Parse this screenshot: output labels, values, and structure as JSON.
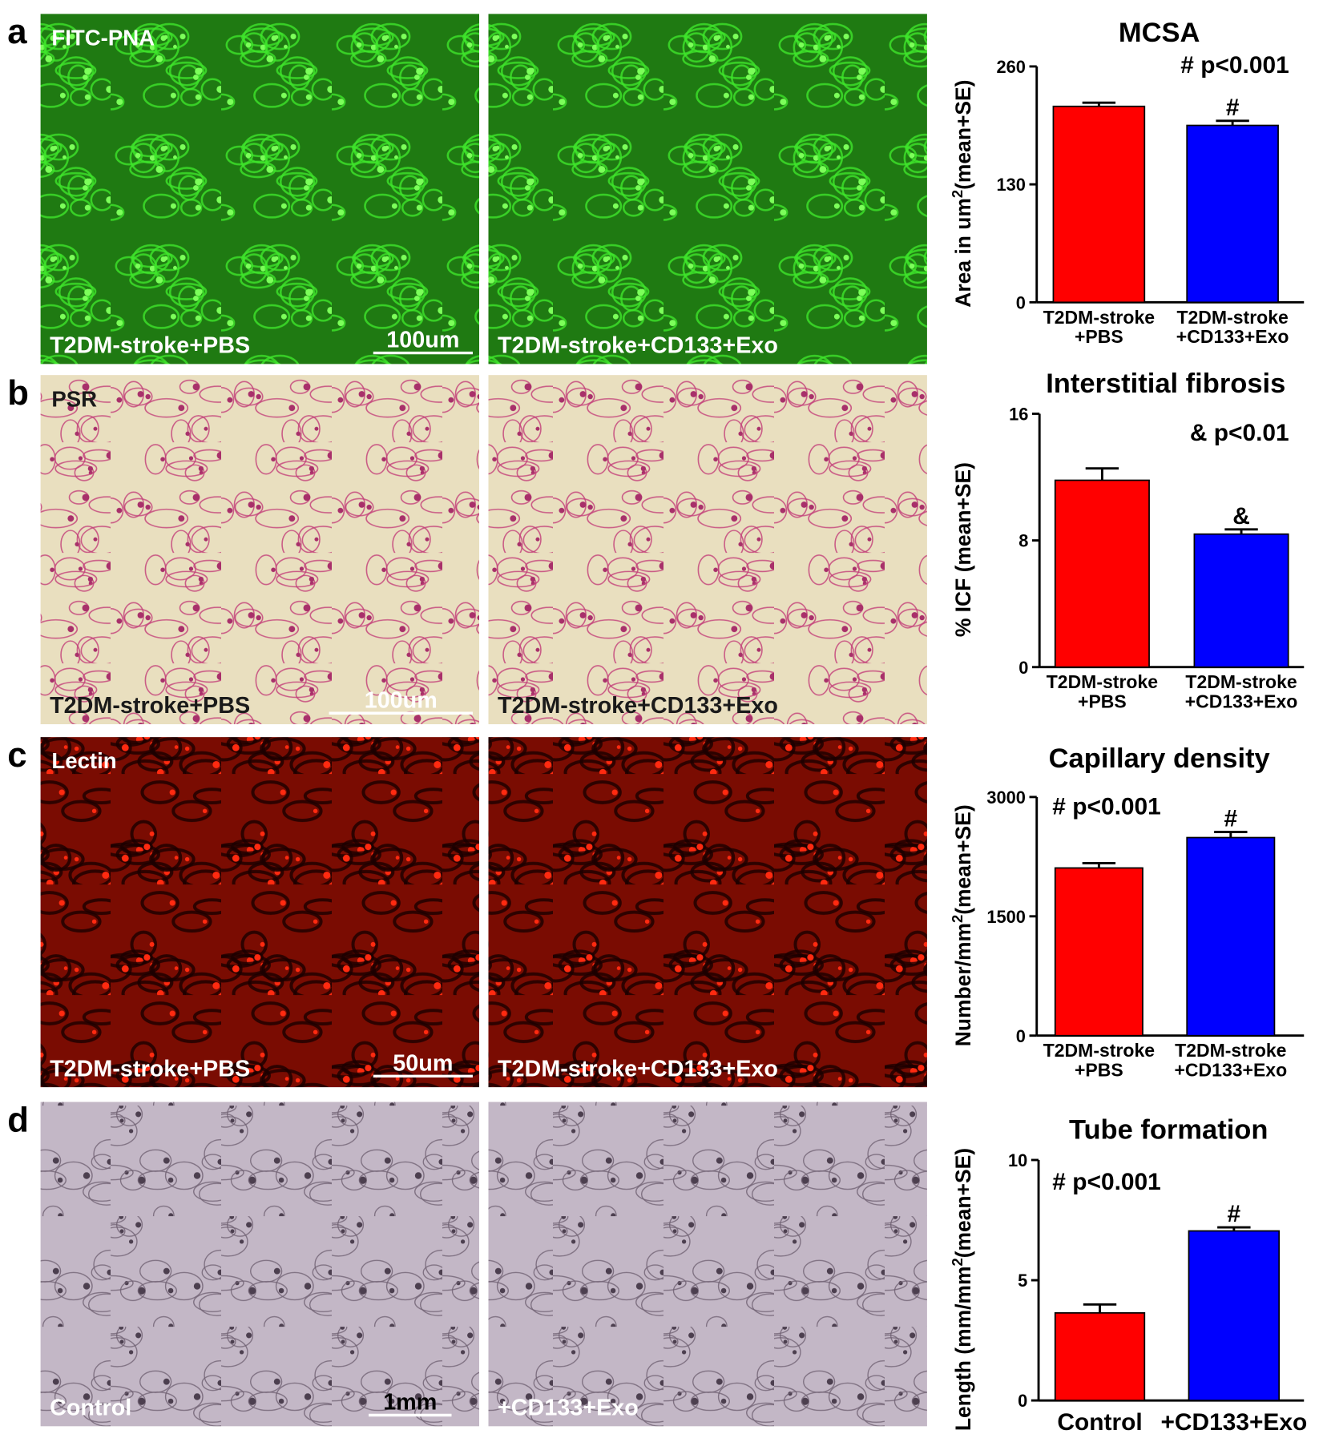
{
  "panels": [
    {
      "letter": "a",
      "stain": "FITC-PNA",
      "scale_bar": "100um",
      "images": [
        "T2DM-stroke+PBS",
        "T2DM-stroke+CD133+Exo"
      ]
    },
    {
      "letter": "b",
      "stain": "PSR",
      "scale_bar": "100um",
      "images": [
        "T2DM-stroke+PBS",
        "T2DM-stroke+CD133+Exo"
      ]
    },
    {
      "letter": "c",
      "stain": "Lectin",
      "scale_bar": "50um",
      "images": [
        "T2DM-stroke+PBS",
        "T2DM-stroke+CD133+Exo"
      ]
    },
    {
      "letter": "d",
      "scale_bar": "1mm",
      "images": [
        "Control",
        "+CD133+Exo"
      ]
    }
  ],
  "chart_data": [
    {
      "type": "bar",
      "title": "MCSA",
      "annotation": "# p<0.001",
      "ylabel": [
        "Area in um",
        "2",
        "(mean+SE)"
      ],
      "categories": [
        [
          "T2DM-stroke",
          "+PBS"
        ],
        [
          "T2DM-stroke",
          "+CD133+Exo"
        ]
      ],
      "values": [
        216,
        195
      ],
      "errors": [
        4,
        5
      ],
      "bar_labels": [
        null,
        "#"
      ],
      "colors": [
        "#ff0000",
        "#0000ff"
      ],
      "ylim": [
        0,
        260
      ],
      "yticks": [
        0,
        130,
        260
      ]
    },
    {
      "type": "bar",
      "title": "Interstitial fibrosis",
      "annotation": "& p<0.01",
      "ylabel": [
        "% ICF  (mean+SE)"
      ],
      "categories": [
        [
          "T2DM-stroke",
          "+PBS"
        ],
        [
          "T2DM-stroke",
          "+CD133+Exo"
        ]
      ],
      "values": [
        11.8,
        8.4
      ],
      "errors": [
        0.75,
        0.3
      ],
      "bar_labels": [
        null,
        "&"
      ],
      "colors": [
        "#ff0000",
        "#0000ff"
      ],
      "ylim": [
        0,
        16
      ],
      "yticks": [
        0,
        8,
        16
      ]
    },
    {
      "type": "bar",
      "title": "Capillary density",
      "annotation": "# p<0.001",
      "ylabel": [
        "Number/mm",
        "2",
        "(mean+SE)"
      ],
      "categories": [
        [
          "T2DM-stroke",
          "+PBS"
        ],
        [
          "T2DM-stroke",
          "+CD133+Exo"
        ]
      ],
      "values": [
        2108,
        2490
      ],
      "errors": [
        60,
        70
      ],
      "bar_labels": [
        null,
        "#"
      ],
      "colors": [
        "#ff0000",
        "#0000ff"
      ],
      "ylim": [
        0,
        3000
      ],
      "yticks": [
        0,
        1500,
        3000
      ]
    },
    {
      "type": "bar",
      "title": "Tube formation",
      "annotation": "# p<0.001",
      "ylabel": [
        "Length (mm/mm",
        "2",
        "(mean+SE)"
      ],
      "categories": [
        [
          "Control"
        ],
        [
          "+CD133+Exo"
        ]
      ],
      "values": [
        3.64,
        7.05
      ],
      "errors": [
        0.35,
        0.15
      ],
      "bar_labels": [
        null,
        "#"
      ],
      "colors": [
        "#ff0000",
        "#0000ff"
      ],
      "ylim": [
        0,
        10
      ],
      "yticks": [
        0,
        5,
        10
      ]
    }
  ]
}
